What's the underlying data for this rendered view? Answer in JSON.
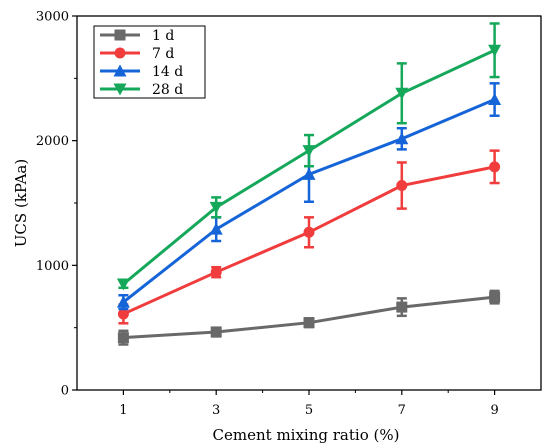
{
  "chart_data": {
    "type": "line",
    "title": "",
    "xlabel": "Cement mixing ratio (%)",
    "ylabel": "UCS (kPAa)",
    "x": [
      1,
      3,
      5,
      7,
      9
    ],
    "xticks": [
      "1",
      "3",
      "5",
      "7",
      "9"
    ],
    "xlim": [
      0,
      10
    ],
    "yticks": [
      "0",
      "1000",
      "2000",
      "3000"
    ],
    "ylim": [
      0,
      3000
    ],
    "grid": false,
    "legend_position": "top-left",
    "series": [
      {
        "name": "1 d",
        "color": "#696969",
        "marker": "square",
        "values": [
          420,
          465,
          540,
          665,
          745
        ],
        "errors": [
          55,
          35,
          35,
          70,
          50
        ]
      },
      {
        "name": "7 d",
        "color": "#f03c3c",
        "marker": "circle",
        "values": [
          610,
          945,
          1265,
          1640,
          1790
        ],
        "errors": [
          75,
          40,
          120,
          185,
          130
        ]
      },
      {
        "name": "14 d",
        "color": "#1565d8",
        "marker": "triangle-up",
        "values": [
          705,
          1290,
          1730,
          2015,
          2330
        ],
        "errors": [
          55,
          95,
          220,
          85,
          130
        ]
      },
      {
        "name": "28 d",
        "color": "#15a85a",
        "marker": "triangle-down",
        "values": [
          850,
          1465,
          1920,
          2380,
          2725
        ],
        "errors": [
          30,
          80,
          125,
          240,
          215
        ]
      }
    ]
  }
}
